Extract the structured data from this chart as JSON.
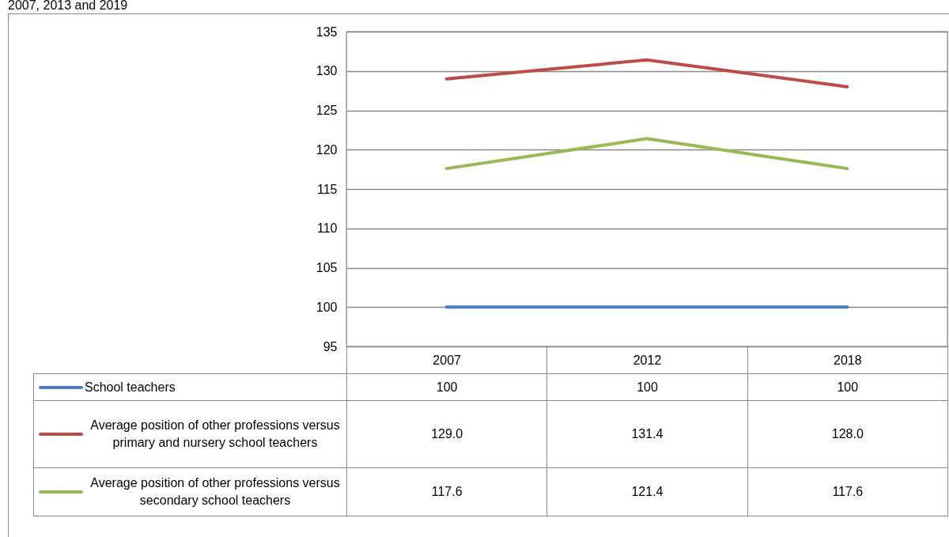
{
  "chart_data": {
    "type": "line",
    "title": "2007, 2013 and 2019",
    "categories": [
      "2007",
      "2012",
      "2018"
    ],
    "series": [
      {
        "name": "School teachers",
        "color": "#4a7ebb",
        "values": [
          100,
          100,
          100
        ],
        "value_labels": [
          "100",
          "100",
          "100"
        ]
      },
      {
        "name": "Average position of other professions versus primary and nursery school teachers",
        "color": "#be4b48",
        "values": [
          129.0,
          131.4,
          128.0
        ],
        "value_labels": [
          "129.0",
          "131.4",
          "128.0"
        ]
      },
      {
        "name": "Average position of other professions versus secondary school teachers",
        "color": "#98b954",
        "values": [
          117.6,
          121.4,
          117.6
        ],
        "value_labels": [
          "117.6",
          "121.4",
          "117.6"
        ]
      }
    ],
    "ylim": [
      95,
      135
    ],
    "yticks": [
      95,
      100,
      105,
      110,
      115,
      120,
      125,
      130,
      135
    ],
    "grid": "y",
    "legend": "bottom",
    "marker": "none",
    "line_style": "solid"
  }
}
